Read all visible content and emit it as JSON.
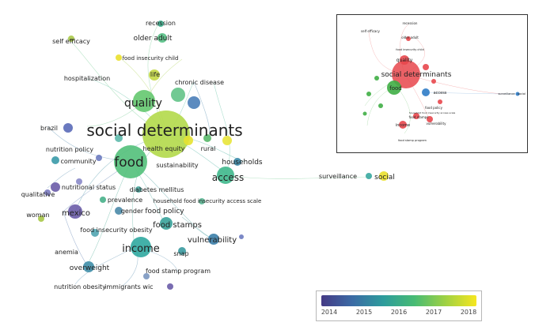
{
  "main_map": {
    "labels": {
      "recession": "recession",
      "older_adult": "older adult",
      "self_efficacy": "self efficacy",
      "food_insecurity_child": "food insecurity child",
      "life": "life",
      "hospitalization": "hospitalization",
      "chronic_disease": "chronic disease",
      "quality": "quality",
      "social_determinants": "social determinants",
      "brazil": "brazil",
      "health_equity": "health equity",
      "rural": "rural",
      "nutrition_policy": "nutrition policy",
      "food": "food",
      "community": "community",
      "sustainability": "sustainability",
      "households": "households",
      "access": "access",
      "nutritional_status": "nutritional status",
      "diabetes_mellitus": "diabetes mellitus",
      "qualitative": "qualitative",
      "prevalence": "prevalence",
      "household_food_insecurity_access_scale": "household food insecurity access scale",
      "mexico": "mexico",
      "gender": "gender",
      "food_policy": "food policy",
      "woman": "woman",
      "food_stamps": "food stamps",
      "food_insecurity_obesity": "food insecurity obesity",
      "vulnerability": "vulnerability",
      "income": "income",
      "anemia": "anemia",
      "snap": "snap",
      "overweight": "overweight",
      "food_stamp_program": "food stamp program",
      "nutrition_obesity": "nutrition obesity",
      "immigrants": "immigrants",
      "wic": "wic",
      "surveillance": "surveillance",
      "social": "social"
    }
  },
  "inset_map": {
    "labels": {
      "recession": "recession",
      "older_adult": "older adult",
      "self_efficacy": "self efficacy",
      "food_insecurity_child": "food insecurity child",
      "quality": "quality",
      "social_determinants": "social determinants",
      "food": "food",
      "access": "access",
      "food_policy": "food policy",
      "food_stamps": "food stamps",
      "income": "income",
      "vulnerability": "vulnerability",
      "surveillance": "surveillance",
      "social": "social",
      "household_food_insecurity_access_scale": "household food insecurity access scale",
      "food_stamp_program": "food stamp program"
    }
  },
  "legend": {
    "ticks": [
      "2014",
      "2015",
      "2016",
      "2017",
      "2018"
    ]
  },
  "colors": {
    "year_2014": "#453a85",
    "year_2015": "#3b6ba5",
    "year_2016": "#2d9c9c",
    "year_2017": "#47bb74",
    "year_2018": "#f6e620",
    "cluster_red": "#e8474c",
    "cluster_green": "#3fae45",
    "cluster_blue": "#2f7cc6"
  }
}
